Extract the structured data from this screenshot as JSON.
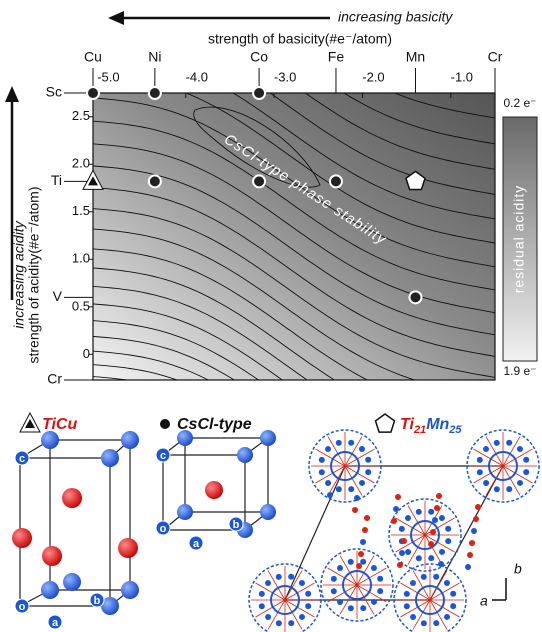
{
  "chart_data": {
    "type": "contour",
    "x_label": "strength of basicity(#e⁻/atom)",
    "x_direction": "increasing basicity",
    "y_label": "strength of acidity(#e⁻/atom)",
    "y_direction": "increasing acidity",
    "annotation": "CsCl-type phase stability",
    "xlim": [
      -5.05,
      -0.5
    ],
    "xticks": [
      {
        "value": -5,
        "label": "-5.0"
      },
      {
        "value": -4,
        "label": "-4.0"
      },
      {
        "value": -3,
        "label": "-3.0"
      },
      {
        "value": -2,
        "label": "-2.0"
      },
      {
        "value": -1,
        "label": "-1.0"
      }
    ],
    "ylim": [
      -0.27,
      2.75
    ],
    "yticks": [
      0,
      0.5,
      {
        "value": 1,
        "label": "1.0"
      },
      1.5,
      {
        "value": 2,
        "label": "2.0"
      },
      2.5
    ],
    "x_elements": {
      "labels": [
        "Cu",
        "Ni",
        "Co",
        "Fe",
        "Mn",
        "Cr"
      ],
      "x": [
        -5.05,
        -4.35,
        -3.17,
        -2.3,
        -1.4,
        -0.5
      ]
    },
    "y_elements": {
      "labels": [
        "Sc",
        "Ti",
        "V",
        "Cr"
      ],
      "y": [
        2.75,
        1.82,
        0.6,
        -0.27
      ]
    },
    "series": [
      {
        "marker": "circle",
        "color": "#222222",
        "x": [
          -5.05,
          -4.35,
          -3.17,
          -4.35,
          -3.17,
          -2.3,
          -1.4
        ],
        "values": [
          2.75,
          2.75,
          2.75,
          1.82,
          1.82,
          1.82,
          0.6
        ]
      },
      {
        "marker": "triangle",
        "color": "#111111",
        "x": [
          -5.05
        ],
        "values": [
          1.82
        ]
      },
      {
        "marker": "pentagon",
        "color": "#ffffff",
        "x": [
          -1.4
        ],
        "values": [
          1.82
        ]
      }
    ],
    "colorbar": {
      "label": "residual acidity",
      "top": "0.2 e⁻",
      "bottom": "1.9 e⁻"
    }
  },
  "legend": [
    {
      "parts": [
        {
          "text": "TiCu",
          "color": "#e01010"
        }
      ]
    },
    {
      "parts": [
        {
          "text": "CsCl-type",
          "color": "#111111"
        }
      ]
    },
    {
      "parts": [
        {
          "text": "Ti",
          "color": "#e01010"
        },
        {
          "text": "21",
          "color": "#e01010",
          "sub": true
        },
        {
          "text": "Mn",
          "color": "#1a56d6"
        },
        {
          "text": "25",
          "color": "#1a56d6",
          "sub": true
        }
      ]
    }
  ],
  "structures": {
    "TiCu_cell": [
      "c",
      "o",
      "a",
      "b"
    ],
    "CsCl_cell": [
      "c",
      "o",
      "a",
      "b"
    ],
    "axes": [
      "b",
      "a"
    ]
  }
}
